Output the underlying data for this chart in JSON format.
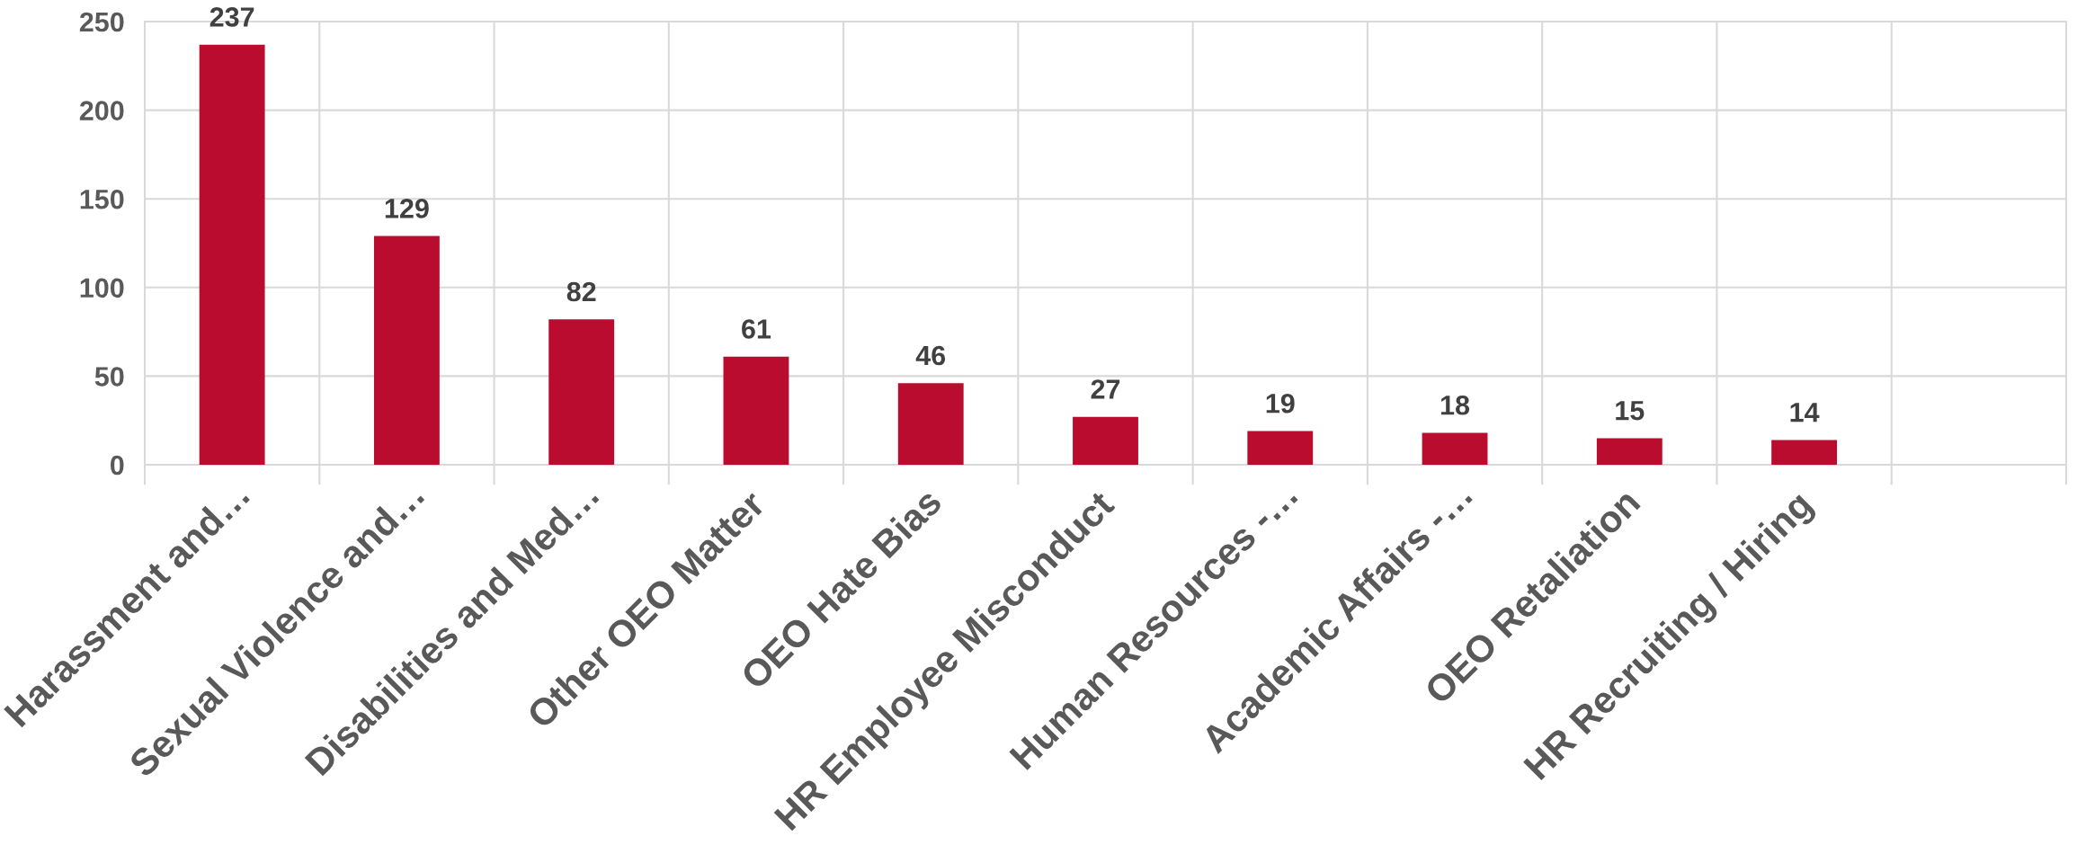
{
  "chart_data": {
    "type": "bar",
    "categories": [
      "Harassment and…",
      "Sexual Violence and…",
      "Disabilities and Med…",
      "Other OEO Matter",
      "OEO Hate Bias",
      "HR Employee Misconduct",
      "Human Resources -…",
      "Academic Affairs -…",
      "OEO Retaliation",
      "HR Recruiting / Hiring",
      null
    ],
    "values": [
      237,
      129,
      82,
      61,
      46,
      27,
      19,
      18,
      15,
      14,
      null
    ],
    "color": "#ba0c2f",
    "ylim": [
      0,
      250
    ],
    "yticks": [
      0,
      50,
      100,
      150,
      200,
      250
    ],
    "grid": true,
    "data_labels": true
  }
}
